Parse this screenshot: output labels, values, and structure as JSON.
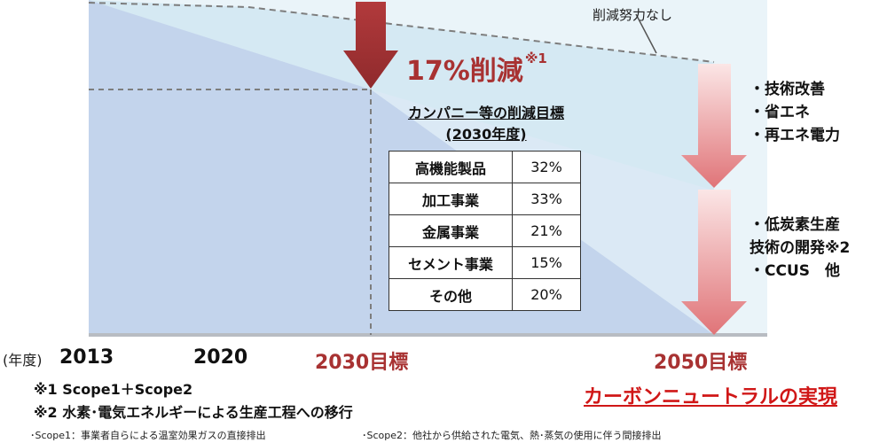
{
  "no_effort_label": "削減努力なし",
  "reduction_2030": {
    "value": "17%削減",
    "note_mark": "※1"
  },
  "table": {
    "title_line1": "カンパニー等の削減目標",
    "title_line2": "(2030年度)",
    "rows": [
      {
        "category": "高機能製品",
        "percent": "32%"
      },
      {
        "category": "加工事業",
        "percent": "33%"
      },
      {
        "category": "金属事業",
        "percent": "21%"
      },
      {
        "category": "セメント事業",
        "percent": "15%"
      },
      {
        "category": "その他",
        "percent": "20%"
      }
    ]
  },
  "measures_upper": [
    "・技術改善",
    "・省エネ",
    "・再エネ電力"
  ],
  "measures_lower": [
    "・低炭素生産",
    "技術の開発※2",
    "・CCUS　他"
  ],
  "axis": {
    "unit": "(年度)",
    "labels": [
      "2013",
      "2020",
      "2030目標",
      "2050目標"
    ]
  },
  "notes": {
    "note1": "※1  Scope1＋Scope2",
    "note2": "※2  水素･電気エネルギーによる生産工程への移行",
    "scope1": "･Scope1：事業者自らによる温室効果ガスの直接排出",
    "scope2": "･Scope2：他社から供給された電気、熱･蒸気の使用に伴う間接排出"
  },
  "carbon_neutral": "カーボンニュートラルの実現",
  "colors": {
    "area_upper": "#d6eaf3",
    "area_lower": "#c1d3ec",
    "dark_arrow": "#9e2f31",
    "pink_arrow": "#e0797c",
    "red_text": "#a83232",
    "cn_red": "#d01717"
  }
}
